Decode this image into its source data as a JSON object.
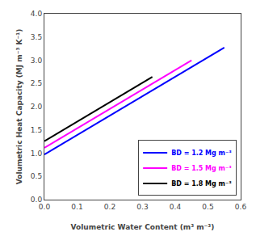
{
  "chart_data": {
    "type": "line",
    "xlabel": "Volumetric Water Content (m³ m⁻³)",
    "ylabel": "Volumetric Heat Capacity (MJ m⁻³ K⁻¹)",
    "xlim": [
      0.0,
      0.6
    ],
    "ylim": [
      0.0,
      4.0
    ],
    "xticks": [
      {
        "value": 0,
        "label": "0.0"
      },
      0.1,
      0.2,
      0.3,
      0.4,
      0.5,
      0.6
    ],
    "yticks": [
      {
        "value": 0,
        "label": "0.0"
      },
      0.5,
      {
        "value": 1,
        "label": "1.0"
      },
      1.5,
      {
        "value": 2,
        "label": "2.0"
      },
      2.5,
      {
        "value": 3,
        "label": "3.0"
      },
      3.5,
      {
        "value": 4,
        "label": "4.0"
      }
    ],
    "series": [
      {
        "name": "BD = 1.2 Mg m⁻³",
        "color": "blue",
        "x": [
          0.0,
          0.55
        ],
        "values": [
          0.972,
          3.271
        ]
      },
      {
        "name": "BD = 1.5 Mg m⁻³",
        "color": "magenta",
        "x": [
          0.0,
          0.45
        ],
        "values": [
          1.116,
          2.997
        ]
      },
      {
        "name": "BD = 1.8 Mg m⁻³",
        "color": "black",
        "x": [
          0.0,
          0.33
        ],
        "values": [
          1.26,
          2.6394
        ]
      }
    ],
    "grid": false,
    "legend": "lower right"
  }
}
